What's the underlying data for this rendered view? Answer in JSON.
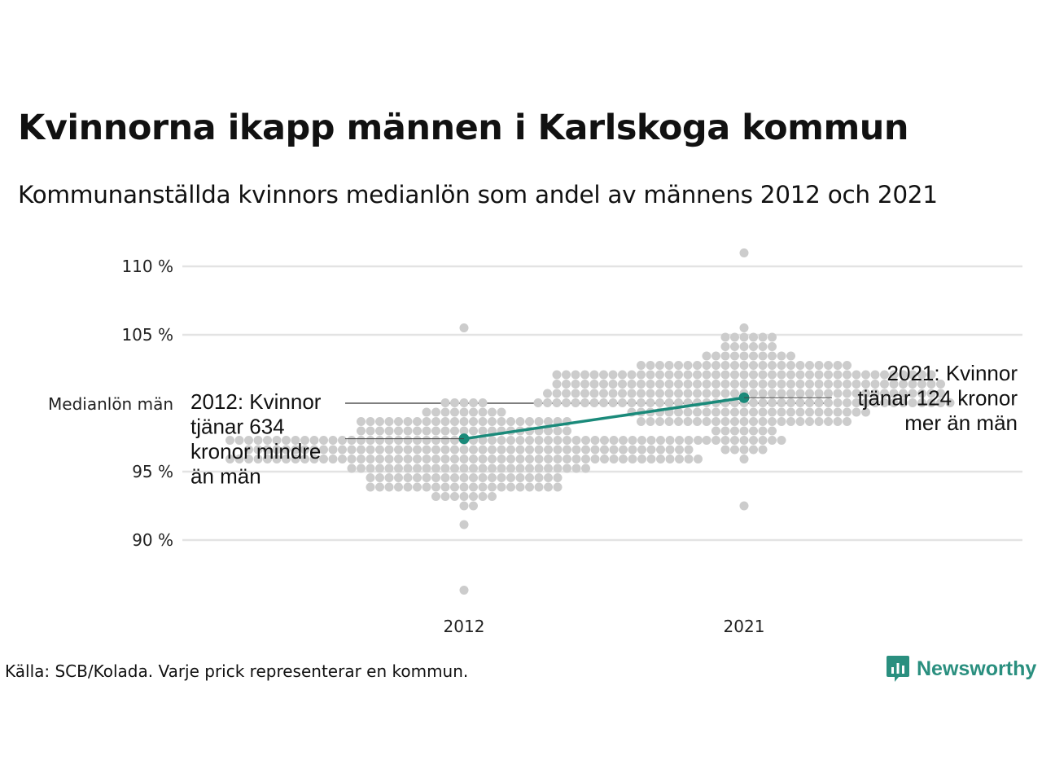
{
  "title": "Kvinnorna ikapp männen i Karlskoga kommun",
  "subtitle": "Kommunanställda kvinnors medianlön som andel av männens 2012 och 2021",
  "source": "Källa: SCB/Kolada. Varje prick representerar en kommun.",
  "brand": {
    "name": "Newsworthy",
    "icon": "newsworthy-logo-icon",
    "color": "#2a8f7f"
  },
  "colors": {
    "dots": "#cccccc",
    "highlight": "#1a8a7a",
    "grid": "#e3e3e3",
    "reference_line": "#333333"
  },
  "chart_data": {
    "type": "scatter",
    "title": "Kvinnorna ikapp männen i Karlskoga kommun",
    "subtitle": "Kommunanställda kvinnors medianlön som andel av männens 2012 och 2021",
    "categories": [
      "2012",
      "2021"
    ],
    "ylim": [
      86,
      111.5
    ],
    "yticks": [
      {
        "value": 90,
        "label": "90 %"
      },
      {
        "value": 95,
        "label": "95 %"
      },
      {
        "value": 105,
        "label": "105 %"
      },
      {
        "value": 110,
        "label": "110 %"
      }
    ],
    "reference_line": {
      "value": 100,
      "label": "Medianlön män"
    },
    "grid": true,
    "distribution": {
      "2012": {
        "median": 96.3,
        "sd": 2.3,
        "min": 86.4,
        "max": 105.3,
        "count": 290
      },
      "2021": {
        "median": 100.8,
        "sd": 2.7,
        "min": 92.6,
        "max": 111.3,
        "count": 290
      }
    },
    "series": [
      {
        "name": "Karlskoga",
        "values": [
          97.4,
          100.4
        ],
        "annotations": [
          "2012: Kvinnor tjänar 634 kronor mindre än män",
          "2021: Kvinnor tjänar 124 kronor mer än män"
        ]
      }
    ],
    "annotation_lines": {
      "2012": [
        "2012: Kvinnor",
        "tjänar 634",
        "kronor mindre",
        "än män"
      ],
      "2021": [
        "2021: Kvinnor",
        "tjänar 124 kronor",
        "mer än män"
      ]
    }
  }
}
